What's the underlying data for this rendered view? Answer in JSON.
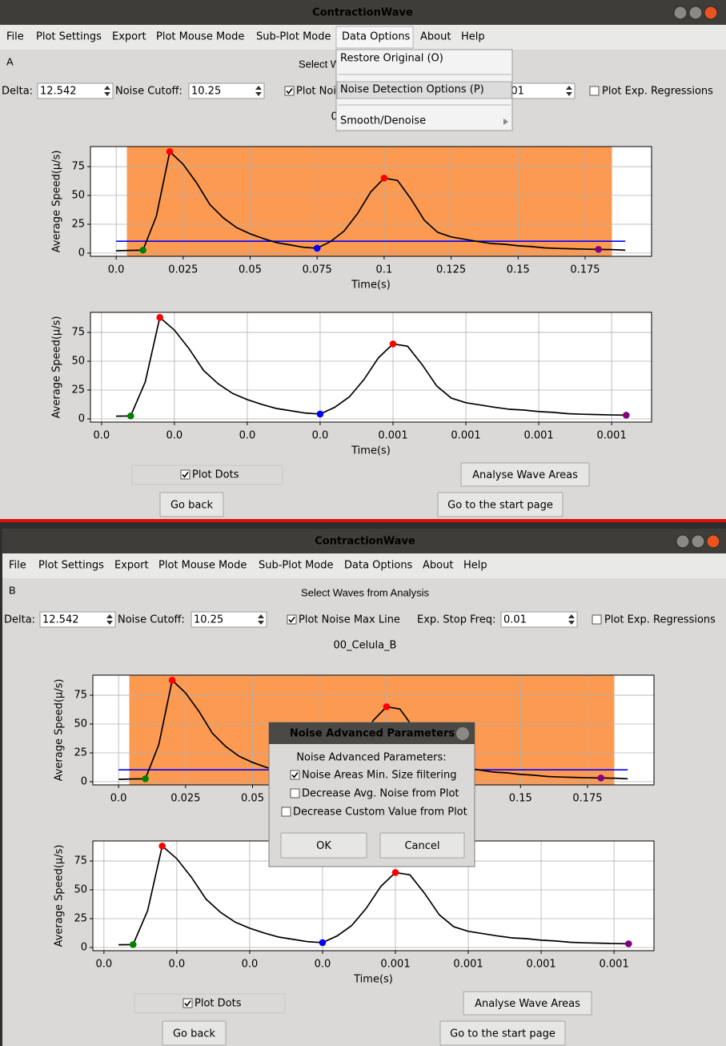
{
  "window_title": "ContractionWave",
  "menu": [
    "File",
    "Plot Settings",
    "Export",
    "Plot Mouse Mode",
    "Sub-Plot Mode",
    "Data Options",
    "About",
    "Help"
  ],
  "panel_labels": [
    "A",
    "B"
  ],
  "heading": "Select Waves from Analysis",
  "controls": {
    "delta_label": "Delta:",
    "delta_value": "12.542",
    "noise_cutoff_label": "Noise Cutoff:",
    "noise_cutoff_value": "10.25",
    "plot_noise_max_line": {
      "label": "Plot Noise Max Line",
      "checked": true
    },
    "exp_stop_freq_label": "Exp. Stop Freq:",
    "exp_stop_freq_value": "0.01",
    "plot_exp_regressions": {
      "label": "Plot Exp. Regressions",
      "checked": false
    }
  },
  "file_name": "00_Celula_B",
  "plots": {
    "top": {
      "x_label": "Time(s)",
      "y_label": "Average Speed(μ/s)",
      "xlim": [
        -0.0096,
        0.1998
      ],
      "ylim": [
        -2.8,
        92.4
      ],
      "xticks": [
        {
          "value": 0,
          "label": "0.0"
        },
        0.025,
        0.05,
        0.075,
        0.1,
        0.125,
        0.15,
        0.175
      ],
      "yticks": [
        0,
        25,
        50,
        75
      ],
      "grid": true,
      "noise_region": [
        0.004,
        0.185
      ],
      "noise_region_color": "#fd9a52",
      "noise_line": {
        "x": [
          0,
          0.19
        ],
        "y": 10.25,
        "color": "#0000ff"
      },
      "line_color": "#000000",
      "line": {
        "x": [
          0,
          0.005,
          0.01,
          0.015,
          0.02,
          0.025,
          0.03,
          0.035,
          0.04,
          0.045,
          0.05,
          0.055,
          0.06,
          0.065,
          0.07,
          0.075,
          0.08,
          0.085,
          0.09,
          0.095,
          0.1,
          0.105,
          0.11,
          0.115,
          0.12,
          0.125,
          0.13,
          0.135,
          0.14,
          0.145,
          0.15,
          0.155,
          0.16,
          0.165,
          0.17,
          0.175,
          0.18,
          0.185,
          0.19
        ],
        "y": [
          2,
          2.3,
          2.5,
          32,
          88,
          77,
          61,
          42,
          30.5,
          22,
          16.7,
          12.5,
          9,
          7,
          5,
          4.2,
          10,
          19,
          34,
          53,
          65,
          63,
          47,
          28.5,
          18,
          14,
          12,
          10,
          8.3,
          7.6,
          6.3,
          5.6,
          4.5,
          4,
          3.7,
          3.4,
          3.2,
          3,
          2.5
        ]
      },
      "dots": [
        {
          "x": 0.01,
          "y": 2.5,
          "color": "#008000"
        },
        {
          "x": 0.02,
          "y": 88,
          "color": "#ff0000"
        },
        {
          "x": 0.075,
          "y": 4.2,
          "color": "#0000ff"
        },
        {
          "x": 0.1,
          "y": 65,
          "color": "#ff0000"
        },
        {
          "x": 0.18,
          "y": 3.2,
          "color": "#800080"
        }
      ]
    },
    "bottom": {
      "x_label": "Time(s)",
      "y_label": "Average Speed(μ/s)",
      "xlim": [
        -0.0038,
        0.1887
      ],
      "ylim": [
        -2.8,
        92.4
      ],
      "xticks": [
        {
          "value": 0,
          "label": "0.0"
        },
        {
          "value": 0.025,
          "label": "0.0"
        },
        {
          "value": 0.05,
          "label": "0.0"
        },
        {
          "value": 0.075,
          "label": "0.0"
        },
        {
          "value": 0.1,
          "label": "0.001"
        },
        {
          "value": 0.125,
          "label": "0.001"
        },
        {
          "value": 0.15,
          "label": "0.001"
        },
        {
          "value": 0.175,
          "label": "0.001"
        }
      ],
      "yticks": [
        0,
        25,
        50,
        75
      ],
      "grid": true,
      "line_color": "#000000",
      "line": {
        "x": [
          0.005,
          0.01,
          0.015,
          0.02,
          0.025,
          0.03,
          0.035,
          0.04,
          0.045,
          0.05,
          0.055,
          0.06,
          0.065,
          0.07,
          0.075,
          0.08,
          0.085,
          0.09,
          0.095,
          0.1,
          0.105,
          0.11,
          0.115,
          0.12,
          0.125,
          0.13,
          0.135,
          0.14,
          0.145,
          0.15,
          0.155,
          0.16,
          0.165,
          0.17,
          0.175,
          0.18
        ],
        "y": [
          2.3,
          2.5,
          32,
          88,
          77,
          61,
          42,
          30.5,
          22,
          16.7,
          12.5,
          9,
          7,
          5,
          4.2,
          10,
          19,
          34,
          53,
          65,
          63,
          47,
          28.5,
          18,
          14,
          12,
          10,
          8.3,
          7.6,
          6.3,
          5.6,
          4.5,
          4,
          3.7,
          3.4,
          3.2
        ]
      },
      "dots": [
        {
          "x": 0.01,
          "y": 2.5,
          "color": "#008000"
        },
        {
          "x": 0.02,
          "y": 88,
          "color": "#ff0000"
        },
        {
          "x": 0.075,
          "y": 4.2,
          "color": "#0000ff"
        },
        {
          "x": 0.1,
          "y": 65,
          "color": "#ff0000"
        },
        {
          "x": 0.18,
          "y": 3.2,
          "color": "#800080"
        }
      ]
    }
  },
  "plot_dots": {
    "label": "Plot Dots",
    "checked": true
  },
  "buttons": {
    "analyse": "Analyse Wave Areas",
    "go_back": "Go back",
    "start_page": "Go to the start page"
  },
  "data_options_menu": [
    "Restore Original (O)",
    "Noise Detection Options (P)",
    "Smooth/Denoise"
  ],
  "dialog": {
    "title": "Noise Advanced Parameters",
    "heading": "Noise Advanced Parameters:",
    "options": [
      {
        "label": "Noise Areas Min. Size filtering",
        "checked": true
      },
      {
        "label": "Decrease Avg. Noise from Plot",
        "checked": false
      },
      {
        "label": "Decrease Custom Value from Plot",
        "checked": false
      }
    ],
    "ok": "OK",
    "cancel": "Cancel"
  }
}
